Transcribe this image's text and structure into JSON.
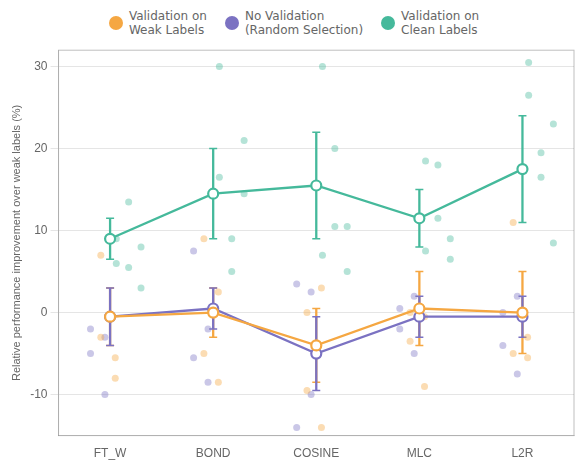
{
  "chart_data": {
    "type": "line",
    "categories": [
      "FT_W",
      "BOND",
      "COSINE",
      "MLC",
      "L2R"
    ],
    "ylabel": "Relative performance improvement over weak labels (%)",
    "ylim": [
      -15,
      32
    ],
    "yticks": [
      -10,
      0,
      10,
      20,
      30
    ],
    "grid": true,
    "legend": "top",
    "series": [
      {
        "name": "Validation on\nWeak Labels",
        "color": "#f5a742",
        "values": [
          -0.5,
          0.0,
          -4.0,
          0.5,
          0.0
        ],
        "errors": [
          3.5,
          3.0,
          4.5,
          4.5,
          5.0
        ],
        "points": [
          [
            [
              -3.0,
              7.0
            ],
            [
              -5.5,
              -8.0
            ]
          ],
          [
            [
              9.0,
              -5.0
            ],
            [
              2.5,
              -8.5
            ]
          ],
          [
            [
              0.0,
              -9.5
            ],
            [
              -14.0,
              3.0
            ]
          ],
          [
            [
              0.0,
              -3.5
            ],
            [
              -9.0,
              -0.5
            ]
          ],
          [
            [
              11.0,
              -5.0
            ],
            [
              -5.5,
              -3.0
            ]
          ]
        ]
      },
      {
        "name": "No Validation\n(Random Selection)",
        "color": "#7b72c2",
        "values": [
          -0.5,
          0.5,
          -5.0,
          -0.5,
          -0.5
        ],
        "errors": [
          3.5,
          2.5,
          4.5,
          2.5,
          2.5
        ],
        "points": [
          [
            [
              -2.0,
              -5.0
            ],
            [
              -3.0,
              -10.0
            ]
          ],
          [
            [
              7.5,
              -5.5
            ],
            [
              -8.5,
              -2.0
            ]
          ],
          [
            [
              3.5,
              -14.0
            ],
            [
              -10.0,
              2.5
            ]
          ],
          [
            [
              0.5,
              -2.0
            ],
            [
              -5.0,
              2.0
            ]
          ],
          [
            [
              0.0,
              -4.0
            ],
            [
              -7.5,
              2.0
            ]
          ]
        ]
      },
      {
        "name": "Validation on\nClean Labels",
        "color": "#45b99b",
        "values": [
          9.0,
          14.5,
          15.5,
          11.5,
          17.5
        ],
        "errors": [
          2.5,
          5.5,
          6.5,
          3.5,
          6.5
        ],
        "points": [
          [
            [
              9.0,
              6.0
            ],
            [
              5.5,
              13.5
            ],
            [
              8.0,
              3.0
            ]
          ],
          [
            [
              30.0,
              16.5
            ],
            [
              9.0,
              5.0
            ],
            [
              14.5,
              21.0
            ]
          ],
          [
            [
              30.0,
              7.0
            ],
            [
              20.0,
              10.5
            ],
            [
              10.5,
              5.0
            ]
          ],
          [
            [
              18.5,
              7.5
            ],
            [
              11.5,
              18.0
            ],
            [
              6.5,
              9.0
            ]
          ],
          [
            [
              30.5,
              26.5
            ],
            [
              19.5,
              16.5
            ],
            [
              8.5,
              23.0
            ]
          ]
        ]
      }
    ]
  }
}
